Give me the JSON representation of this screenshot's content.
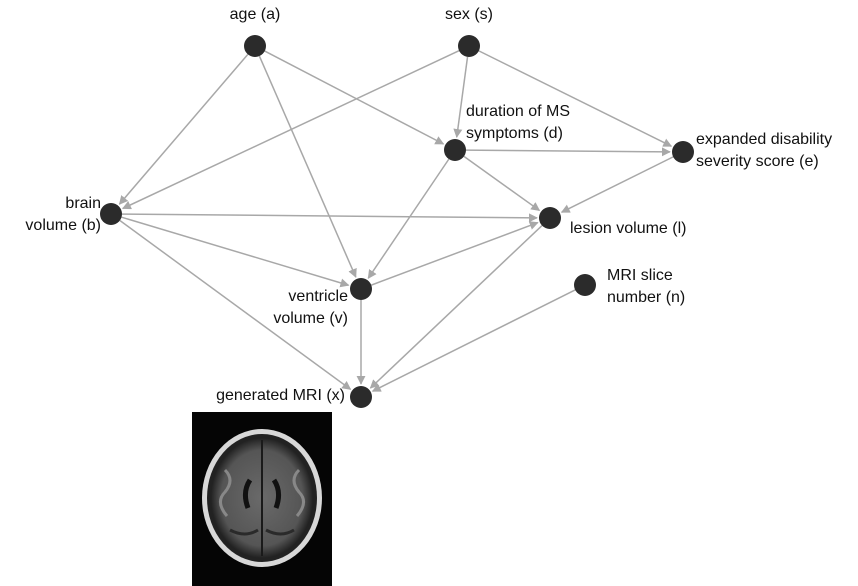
{
  "nodes": [
    {
      "label": [
        "age (a)"
      ]
    },
    {
      "label": [
        "sex (s)"
      ]
    },
    {
      "label": [
        "duration of MS",
        "symptoms (d)"
      ]
    },
    {
      "label": [
        "expanded disability",
        "severity score (e)"
      ]
    },
    {
      "label": [
        "brain",
        "volume (b)"
      ]
    },
    {
      "label": [
        "lesion volume (l)"
      ]
    },
    {
      "label": [
        "ventricle",
        "volume (v)"
      ]
    },
    {
      "label": [
        "MRI slice",
        "number (n)"
      ]
    },
    {
      "label": [
        "generated MRI (x)"
      ]
    }
  ]
}
